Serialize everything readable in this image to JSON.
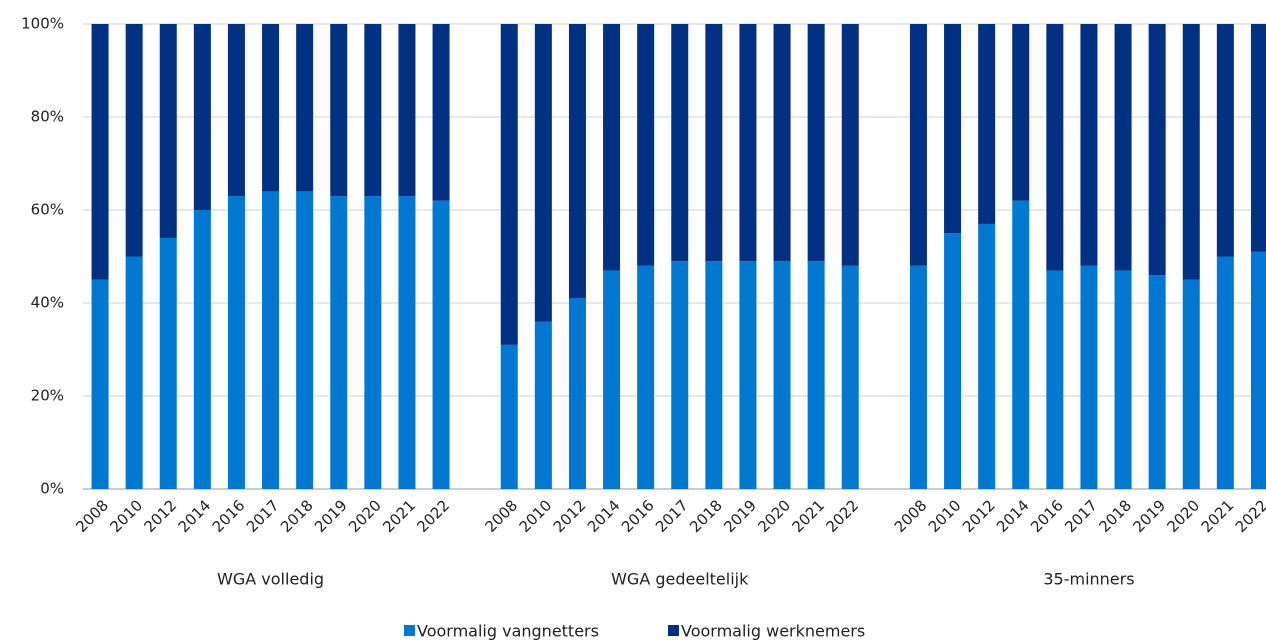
{
  "chart_data": {
    "type": "stacked_bar",
    "groups": [
      {
        "name": "WGA volledig",
        "categories": [
          "2008",
          "2010",
          "2012",
          "2014",
          "2016",
          "2017",
          "2018",
          "2019",
          "2020",
          "2021",
          "2022"
        ]
      },
      {
        "name": "WGA gedeeltelijk",
        "categories": [
          "2008",
          "2010",
          "2012",
          "2014",
          "2016",
          "2017",
          "2018",
          "2019",
          "2020",
          "2021",
          "2022"
        ]
      },
      {
        "name": "35-minners",
        "categories": [
          "2008",
          "2010",
          "2012",
          "2014",
          "2016",
          "2017",
          "2018",
          "2019",
          "2020",
          "2021",
          "2022"
        ]
      }
    ],
    "series": [
      {
        "name": "Voormalig vangnetters",
        "color": "#0078d2",
        "values": [
          [
            45,
            50,
            54,
            60,
            63,
            64,
            64,
            63,
            63,
            63,
            62
          ],
          [
            31,
            36,
            41,
            47,
            48,
            49,
            49,
            49,
            49,
            49,
            48
          ],
          [
            48,
            55,
            57,
            62,
            47,
            48,
            47,
            46,
            45,
            50,
            51
          ]
        ]
      },
      {
        "name": "Voormalig werknemers",
        "color": "#003082",
        "values": [
          [
            55,
            50,
            46,
            40,
            37,
            36,
            36,
            37,
            37,
            37,
            38
          ],
          [
            69,
            64,
            59,
            53,
            52,
            51,
            51,
            51,
            51,
            51,
            52
          ],
          [
            52,
            45,
            43,
            38,
            53,
            52,
            53,
            54,
            55,
            50,
            49
          ]
        ]
      }
    ],
    "ylim": [
      0,
      100
    ],
    "yticks": [
      {
        "value": 0,
        "label": "0%"
      },
      {
        "value": 20,
        "label": "20%"
      },
      {
        "value": 40,
        "label": "40%"
      },
      {
        "value": 60,
        "label": "60%"
      },
      {
        "value": 80,
        "label": "80%"
      },
      {
        "value": 100,
        "label": "100%"
      }
    ],
    "grid": true,
    "legend": "bottom"
  }
}
